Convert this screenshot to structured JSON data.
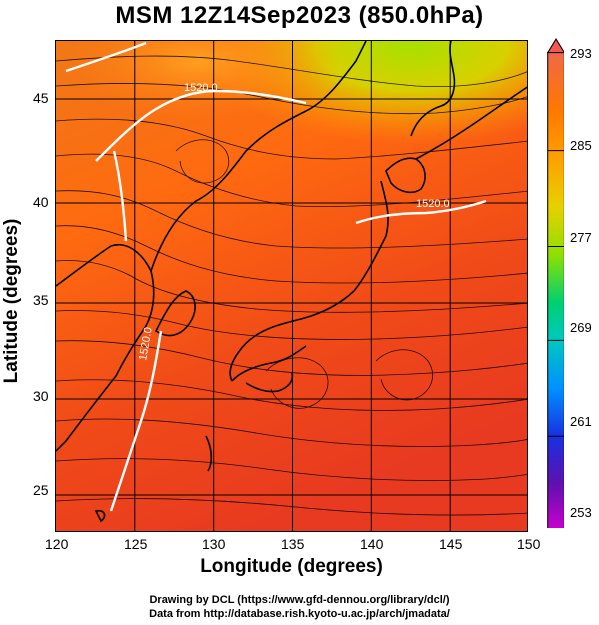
{
  "title": "MSM 12Z14Sep2023 (850.0hPa)",
  "x_axis": {
    "label": "Longitude (degrees)",
    "ticks": [
      "120",
      "125",
      "130",
      "135",
      "140",
      "145",
      "150"
    ]
  },
  "y_axis": {
    "label": "Latitude  (degrees)",
    "ticks": [
      "25",
      "30",
      "35",
      "40",
      "45"
    ]
  },
  "colorbar": {
    "labels": [
      "293",
      "285",
      "277",
      "269",
      "261",
      "253"
    ],
    "gradient": [
      "#f06040",
      "#ff7f00",
      "#ffa000",
      "#f0c000",
      "#a0e000",
      "#00d060",
      "#00c0c0",
      "#0080ff",
      "#2020e0",
      "#6010b0",
      "#d000d0"
    ]
  },
  "contour_labels": [
    "1520.0",
    "1520.0",
    "1520.0"
  ],
  "credits": [
    "Drawing by DCL (https://www.gfd-dennou.org/library/dcl/)",
    "Data from http://database.rish.kyoto-u.ac.jp/arch/jmadata/"
  ]
}
